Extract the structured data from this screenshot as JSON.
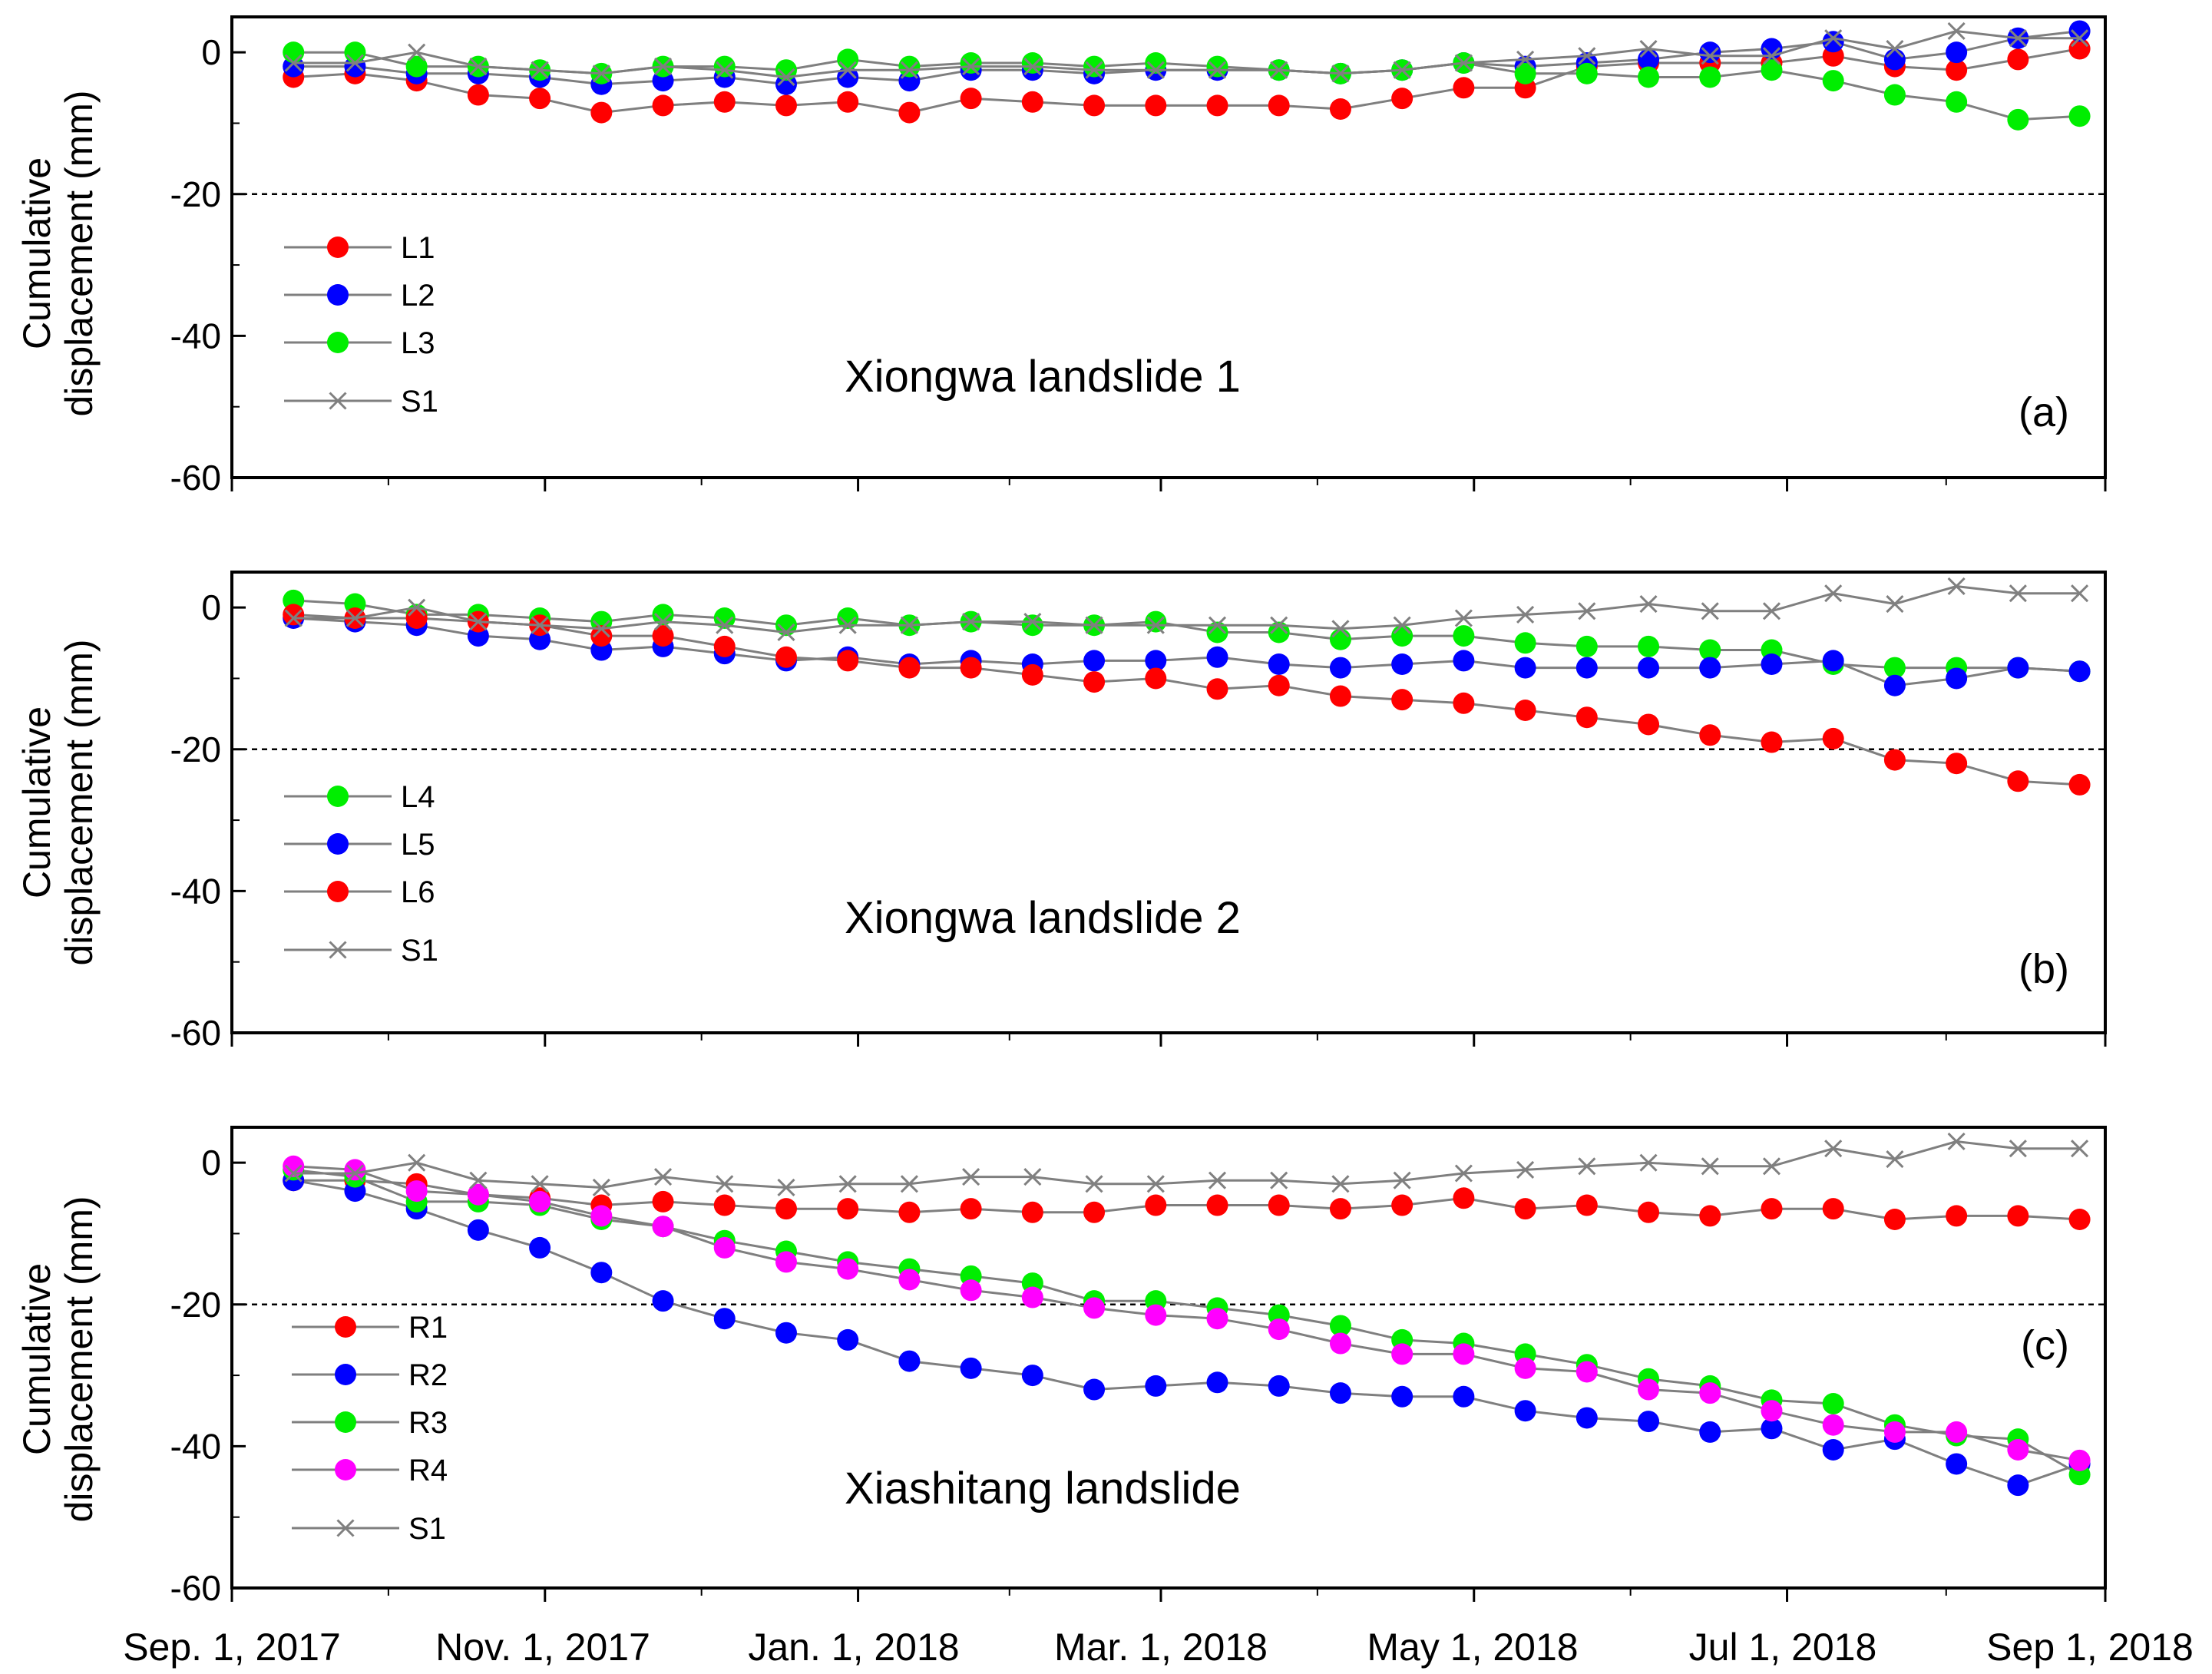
{
  "chart_data": [
    {
      "type": "line",
      "panel": "a",
      "title": "Xiongwa landslide 1",
      "panel_tag": "(a)",
      "ylabel_line1": "Cumulative",
      "ylabel_line2": "displacement (mm)",
      "ylim": [
        -60,
        5
      ],
      "yticks": [
        0,
        -20,
        -40,
        -60
      ],
      "threshold": -20,
      "legend_position": "left",
      "series": [
        {
          "name": "L1",
          "color": "#ff0000",
          "marker": "circle",
          "values": [
            -3.5,
            -3,
            -4,
            -6,
            -6.5,
            -8.5,
            -7.5,
            -7,
            -7.5,
            -7,
            -8.5,
            -6.5,
            -7,
            -7.5,
            -7.5,
            -7.5,
            -7.5,
            -8,
            -6.5,
            -5,
            -5,
            -2,
            -1.5,
            -1.5,
            -1.5,
            -0.5,
            -2,
            -2.5,
            -1,
            0.5
          ]
        },
        {
          "name": "L2",
          "color": "#0000ff",
          "marker": "circle",
          "values": [
            -2,
            -2,
            -3,
            -3,
            -3.5,
            -4.5,
            -4,
            -3.5,
            -4.5,
            -3.5,
            -4,
            -2.5,
            -2.5,
            -3,
            -2.5,
            -2.5,
            -2.5,
            -3,
            -2.5,
            -1.5,
            -2,
            -1.5,
            -1,
            0,
            0.5,
            1.5,
            -1,
            0,
            2,
            3
          ]
        },
        {
          "name": "L3",
          "color": "#00ee00",
          "marker": "circle",
          "values": [
            0,
            0,
            -2,
            -2,
            -2.5,
            -3,
            -2,
            -2,
            -2.5,
            -1,
            -2,
            -1.5,
            -1.5,
            -2,
            -1.5,
            -2,
            -2.5,
            -3,
            -2.5,
            -1.5,
            -3,
            -3,
            -3.5,
            -3.5,
            -2.5,
            -4,
            -6,
            -7,
            -9.5,
            -9
          ]
        },
        {
          "name": "S1",
          "color": "#808080",
          "marker": "x",
          "values": [
            -1.5,
            -1.5,
            0,
            -2,
            -2.5,
            -3,
            -2,
            -2.5,
            -3.5,
            -2.5,
            -2.5,
            -2,
            -2,
            -2.5,
            -2.5,
            -2.5,
            -2.5,
            -3,
            -2.5,
            -1.5,
            -1,
            -0.5,
            0.5,
            -0.5,
            -0.5,
            2,
            0.5,
            3,
            2,
            2
          ]
        }
      ],
      "legend_entries": [
        "L1",
        "L2",
        "L3",
        "S1"
      ]
    },
    {
      "type": "line",
      "panel": "b",
      "title": "Xiongwa landslide 2",
      "panel_tag": "(b)",
      "ylabel_line1": "Cumulative",
      "ylabel_line2": "displacement (mm)",
      "ylim": [
        -60,
        5
      ],
      "yticks": [
        0,
        -20,
        -40,
        -60
      ],
      "threshold": -20,
      "legend_position": "left",
      "series": [
        {
          "name": "L4",
          "color": "#00ee00",
          "marker": "circle",
          "values": [
            1,
            0.5,
            -1,
            -1,
            -1.5,
            -2,
            -1,
            -1.5,
            -2.5,
            -1.5,
            -2.5,
            -2,
            -2.5,
            -2.5,
            -2,
            -3.5,
            -3.5,
            -4.5,
            -4,
            -4,
            -5,
            -5.5,
            -5.5,
            -6,
            -6,
            -8,
            -8.5,
            -8.5,
            -8.5,
            -9
          ]
        },
        {
          "name": "L5",
          "color": "#0000ff",
          "marker": "circle",
          "values": [
            -1.5,
            -2,
            -2.5,
            -4,
            -4.5,
            -6,
            -5.5,
            -6.5,
            -7.5,
            -7,
            -8,
            -7.5,
            -8,
            -7.5,
            -7.5,
            -7,
            -8,
            -8.5,
            -8,
            -7.5,
            -8.5,
            -8.5,
            -8.5,
            -8.5,
            -8,
            -7.5,
            -11,
            -10,
            -8.5,
            -9
          ]
        },
        {
          "name": "L6",
          "color": "#ff0000",
          "marker": "circle",
          "values": [
            -1,
            -1.5,
            -1.5,
            -2,
            -2.5,
            -4,
            -4,
            -5.5,
            -7,
            -7.5,
            -8.5,
            -8.5,
            -9.5,
            -10.5,
            -10,
            -11.5,
            -11,
            -12.5,
            -13,
            -13.5,
            -14.5,
            -15.5,
            -16.5,
            -18,
            -19,
            -18.5,
            -21.5,
            -22,
            -24.5,
            -25
          ]
        },
        {
          "name": "S1",
          "color": "#808080",
          "marker": "x",
          "values": [
            -1.5,
            -1.5,
            0,
            -2,
            -2.5,
            -3,
            -2,
            -2.5,
            -3.5,
            -2.5,
            -2.5,
            -2,
            -2,
            -2.5,
            -2.5,
            -2.5,
            -2.5,
            -3,
            -2.5,
            -1.5,
            -1,
            -0.5,
            0.5,
            -0.5,
            -0.5,
            2,
            0.5,
            3,
            2,
            2
          ]
        }
      ],
      "legend_entries": [
        "L4",
        "L5",
        "L6",
        "S1"
      ]
    },
    {
      "type": "line",
      "panel": "c",
      "title": "Xiashitang landslide",
      "panel_tag": "(c)",
      "ylabel_line1": "Cumulative",
      "ylabel_line2": "displacement (mm)",
      "ylim": [
        -60,
        5
      ],
      "yticks": [
        0,
        -20,
        -40,
        -60
      ],
      "threshold": -20,
      "legend_position": "left",
      "series": [
        {
          "name": "R1",
          "color": "#ff0000",
          "marker": "circle",
          "values": [
            -2.5,
            -2.5,
            -3,
            -4.5,
            -5,
            -6,
            -5.5,
            -6,
            -6.5,
            -6.5,
            -7,
            -6.5,
            -7,
            -7,
            -6,
            -6,
            -6,
            -6.5,
            -6,
            -5,
            -6.5,
            -6,
            -7,
            -7.5,
            -6.5,
            -6.5,
            -8,
            -7.5,
            -7.5,
            -8
          ]
        },
        {
          "name": "R2",
          "color": "#0000ff",
          "marker": "circle",
          "values": [
            -2.5,
            -4,
            -6.5,
            -9.5,
            -12,
            -15.5,
            -19.5,
            -22,
            -24,
            -25,
            -28,
            -29,
            -30,
            -32,
            -31.5,
            -31,
            -31.5,
            -32.5,
            -33,
            -33,
            -35,
            -36,
            -36.5,
            -38,
            -37.5,
            -40.5,
            -39,
            -42.5,
            -45.5,
            -42.5
          ]
        },
        {
          "name": "R3",
          "color": "#00ee00",
          "marker": "circle",
          "values": [
            -1,
            -2,
            -5.5,
            -5.5,
            -6,
            -8,
            -9,
            -11,
            -12.5,
            -14,
            -15,
            -16,
            -17,
            -19.5,
            -19.5,
            -20.5,
            -21.5,
            -23,
            -25,
            -25.5,
            -27,
            -28.5,
            -30.5,
            -31.5,
            -33.5,
            -34,
            -37,
            -38.5,
            -39,
            -44
          ]
        },
        {
          "name": "R4",
          "color": "#ff00ff",
          "marker": "circle",
          "values": [
            -0.5,
            -1,
            -4,
            -4.5,
            -5.5,
            -7.5,
            -9,
            -12,
            -14,
            -15,
            -16.5,
            -18,
            -19,
            -20.5,
            -21.5,
            -22,
            -23.5,
            -25.5,
            -27,
            -27,
            -29,
            -29.5,
            -32,
            -32.5,
            -35,
            -37,
            -38,
            -38,
            -40.5,
            -42
          ]
        },
        {
          "name": "S1",
          "color": "#808080",
          "marker": "x",
          "values": [
            -1.5,
            -1.5,
            0,
            -2.5,
            -3,
            -3.5,
            -2,
            -3,
            -3.5,
            -3,
            -3,
            -2,
            -2,
            -3,
            -3,
            -2.5,
            -2.5,
            -3,
            -2.5,
            -1.5,
            -1,
            -0.5,
            0,
            -0.5,
            -0.5,
            2,
            0.5,
            3,
            2,
            2
          ]
        }
      ],
      "legend_entries": [
        "R1",
        "R2",
        "R3",
        "R4",
        "S1"
      ]
    }
  ],
  "x_axis": {
    "start_day": 0,
    "end_day": 365,
    "sample_start_day": 12,
    "sample_step_days": 12,
    "sample_count": 30,
    "tick_days": [
      0,
      61,
      122,
      181,
      242,
      303,
      365
    ],
    "tick_labels": [
      "Sep. 1, 2017",
      "Nov. 1, 2017",
      "Jan. 1, 2018",
      "Mar. 1, 2018",
      "May 1, 2018",
      "Jul 1, 2018",
      "Sep 1, 2018"
    ]
  }
}
